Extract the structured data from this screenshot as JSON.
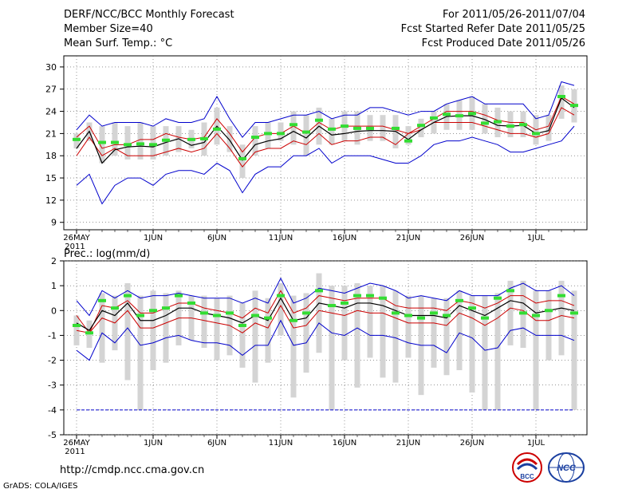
{
  "header": {
    "line1_left": "DERF/NCC/BCC Monthly Forecast",
    "line2_left": "Member Size=40",
    "line3_left": "Mean Surf. Temp.: °C",
    "line1_right": "For 2011/05/26-2011/07/04",
    "line2_right": "Fcst Started Refer Date 2011/05/25",
    "line3_right": "Fcst Produced Date 2011/05/26"
  },
  "footer": {
    "url": "http://cmdp.ncc.cma.gov.cn",
    "credit": "GrADS: COLA/IGES"
  },
  "logos": {
    "left": "BCC",
    "right": "NCC"
  },
  "colors": {
    "envelope": "#0000cc",
    "band": "#cc0000",
    "mean": "#000000",
    "obs": "#33dd33",
    "box": "#d4d4d4",
    "grid": "#555555"
  },
  "chart_data": [
    {
      "type": "line",
      "title": "Mean Surf. Temp.: °C",
      "xlabel": "",
      "ylabel": "",
      "ylim": [
        8,
        31.5
      ],
      "yticks": [
        9,
        12,
        15,
        18,
        21,
        24,
        27,
        30
      ],
      "xticks": [
        {
          "day": 0,
          "label": "26MAY",
          "sub": "2011"
        },
        {
          "day": 6,
          "label": "1JUN"
        },
        {
          "day": 11,
          "label": "6JUN"
        },
        {
          "day": 16,
          "label": "11JUN"
        },
        {
          "day": 21,
          "label": "16JUN"
        },
        {
          "day": 26,
          "label": "21JUN"
        },
        {
          "day": 31,
          "label": "26JUN"
        },
        {
          "day": 36,
          "label": "1JUL"
        }
      ],
      "days": 40,
      "series": [
        {
          "name": "max",
          "values": [
            14,
            15.5,
            11.5,
            14,
            15,
            15,
            14,
            15.5,
            16,
            16,
            15.5,
            17,
            16,
            13,
            15.5,
            16.5,
            16.5,
            18,
            18,
            19,
            17,
            18,
            18,
            18,
            17.5,
            17,
            17,
            18,
            19.5,
            20,
            20,
            20.5,
            20,
            19.5,
            18.5,
            18.5,
            19,
            19.5,
            20,
            22
          ]
        },
        {
          "name": "upper_band",
          "values": [
            18,
            20.5,
            18,
            19,
            18,
            18,
            18,
            18.5,
            19,
            18.5,
            19,
            21,
            19,
            16.5,
            18.5,
            19,
            19,
            20,
            19.5,
            21,
            19.5,
            20,
            20,
            20.5,
            20.5,
            19.5,
            21,
            21.5,
            22.5,
            22.5,
            22.5,
            22.5,
            22,
            21.5,
            21,
            21,
            20.5,
            21,
            24.5,
            23.5
          ]
        },
        {
          "name": "mean",
          "values": [
            19,
            21.3,
            17,
            18.8,
            19.2,
            19.3,
            19.2,
            19.8,
            20.3,
            19.4,
            19.8,
            22,
            20.1,
            17.4,
            19.5,
            20,
            20.3,
            21.3,
            20.4,
            22,
            20.8,
            21,
            21.3,
            21.4,
            21.4,
            21.3,
            20.2,
            21.5,
            22.5,
            23.3,
            23.4,
            23.4,
            22.9,
            22.1,
            22,
            22.1,
            21,
            21.4,
            25.8,
            24.5
          ]
        },
        {
          "name": "lower_band",
          "values": [
            20.5,
            22,
            19,
            19.5,
            19.5,
            20.2,
            20.2,
            21,
            20.5,
            20.2,
            20.5,
            23,
            21,
            18.5,
            20.5,
            21,
            21,
            22,
            21,
            22.5,
            21.5,
            22,
            22,
            22,
            22,
            21.5,
            21,
            22,
            23,
            24,
            24,
            24,
            23.5,
            22.8,
            22.5,
            22.5,
            21.5,
            22,
            26,
            25
          ]
        },
        {
          "name": "min",
          "values": [
            21.5,
            23.5,
            22,
            22.5,
            22.5,
            22.5,
            22,
            23,
            22.5,
            22.5,
            23,
            26,
            23,
            20.5,
            22.5,
            22.5,
            23,
            23.5,
            23.5,
            24,
            23,
            23.5,
            23.5,
            24.5,
            24.5,
            24,
            23.5,
            24,
            24,
            25,
            25.5,
            26,
            25,
            25,
            25,
            25,
            23,
            23.5,
            28,
            27.5
          ]
        },
        {
          "name": "observed",
          "values": [
            20.2,
            null,
            19.8,
            19.8,
            19.5,
            19.6,
            19.5,
            20.1,
            null,
            20.2,
            20.3,
            21.6,
            null,
            17.6,
            20.5,
            21,
            21,
            22.2,
            21.2,
            22.8,
            21.6,
            22,
            21.7,
            21.7,
            null,
            21.7,
            20,
            22.1,
            23.1,
            23.6,
            23.4,
            23.7,
            22.4,
            22.6,
            22,
            22.2,
            21,
            null,
            26,
            24.8
          ]
        },
        {
          "name": "box_low",
          "values": [
            19,
            20,
            17,
            18,
            17.5,
            17.5,
            17.5,
            18,
            18.5,
            19,
            18,
            19.5,
            18.5,
            15,
            18,
            19,
            20,
            19.5,
            18,
            19.5,
            19.5,
            20,
            19.5,
            20,
            20,
            19,
            19.5,
            20.5,
            21,
            21.5,
            21.5,
            21.5,
            21,
            20.5,
            20.5,
            20.5,
            19.5,
            20,
            23,
            22.5
          ]
        },
        {
          "name": "box_high",
          "values": [
            21,
            22.5,
            22,
            22.5,
            22,
            22.5,
            22,
            22,
            22,
            21.5,
            22.5,
            24.5,
            22,
            19.5,
            22,
            22.5,
            22.5,
            24,
            23.5,
            24.5,
            23,
            24,
            24,
            23.5,
            23.5,
            23.5,
            22,
            23,
            24,
            25,
            25.5,
            26,
            25,
            24.5,
            24,
            24,
            23.5,
            23.5,
            27.5,
            27
          ]
        }
      ]
    },
    {
      "type": "line",
      "title": "Prec.: log(mm/d)",
      "xlabel": "",
      "ylabel": "",
      "ylim": [
        -5,
        2
      ],
      "yticks": [
        -5,
        -4,
        -3,
        -2,
        -1,
        0,
        1,
        2
      ],
      "xticks": [
        {
          "day": 0,
          "label": "26MAY",
          "sub": "2011"
        },
        {
          "day": 6,
          "label": "1JUN"
        },
        {
          "day": 11,
          "label": "6JUN"
        },
        {
          "day": 16,
          "label": "11JUN"
        },
        {
          "day": 21,
          "label": "16JUN"
        },
        {
          "day": 26,
          "label": "21JUN"
        },
        {
          "day": 31,
          "label": "26JUN"
        },
        {
          "day": 36,
          "label": "1JUL"
        }
      ],
      "days": 40,
      "series": [
        {
          "name": "max",
          "values": [
            0.4,
            -0.2,
            0.8,
            0.5,
            0.8,
            0.5,
            0.6,
            0.6,
            0.7,
            0.6,
            0.5,
            0.5,
            0.5,
            0.3,
            0.5,
            0.3,
            1.3,
            0.3,
            0.5,
            0.9,
            0.8,
            0.7,
            0.9,
            1.1,
            1.0,
            0.8,
            0.5,
            0.6,
            0.5,
            0.4,
            0.8,
            0.6,
            0.6,
            0.6,
            0.9,
            1.1,
            0.8,
            0.8,
            1.0,
            0.6
          ]
        },
        {
          "name": "upper_band",
          "values": [
            -0.2,
            -0.9,
            0.2,
            0.1,
            0.4,
            -0.1,
            -0.1,
            0.1,
            0.3,
            0.3,
            0.1,
            0.0,
            -0.1,
            -0.3,
            0.1,
            -0.1,
            0.8,
            -0.1,
            0.1,
            0.6,
            0.5,
            0.4,
            0.5,
            0.5,
            0.5,
            0.2,
            0.1,
            0.1,
            0.1,
            0.0,
            0.4,
            0.3,
            0.1,
            0.3,
            0.6,
            0.6,
            0.3,
            0.4,
            0.4,
            0.2
          ]
        },
        {
          "name": "mean",
          "values": [
            -0.5,
            -0.8,
            0.0,
            -0.2,
            0.3,
            -0.4,
            -0.4,
            -0.2,
            0.1,
            0.1,
            -0.1,
            -0.2,
            -0.3,
            -0.5,
            -0.2,
            -0.4,
            0.5,
            -0.4,
            -0.3,
            0.3,
            0.2,
            0.1,
            0.3,
            0.3,
            0.2,
            0.0,
            -0.2,
            -0.2,
            -0.2,
            -0.3,
            0.2,
            0.0,
            -0.2,
            0.1,
            0.4,
            0.3,
            -0.1,
            0.0,
            0.1,
            0.0
          ]
        },
        {
          "name": "lower_band",
          "values": [
            -0.8,
            -0.9,
            -0.3,
            -0.5,
            0.0,
            -0.7,
            -0.7,
            -0.5,
            -0.3,
            -0.3,
            -0.4,
            -0.5,
            -0.6,
            -0.9,
            -0.5,
            -0.7,
            0.2,
            -0.7,
            -0.6,
            0.0,
            -0.1,
            -0.2,
            0.0,
            -0.1,
            -0.1,
            -0.3,
            -0.5,
            -0.5,
            -0.5,
            -0.6,
            -0.1,
            -0.3,
            -0.6,
            -0.3,
            0.1,
            0.0,
            -0.4,
            -0.4,
            -0.2,
            -0.3
          ]
        },
        {
          "name": "min",
          "values": [
            -1.6,
            -2.0,
            -0.9,
            -1.3,
            -0.7,
            -1.4,
            -1.3,
            -1.1,
            -1.0,
            -1.2,
            -1.3,
            -1.3,
            -1.4,
            -1.8,
            -1.4,
            -1.4,
            -0.4,
            -1.4,
            -1.3,
            -0.5,
            -0.9,
            -1.0,
            -0.7,
            -1.0,
            -1.0,
            -1.1,
            -1.3,
            -1.4,
            -1.4,
            -1.7,
            -0.9,
            -1.1,
            -1.6,
            -1.5,
            -0.8,
            -0.7,
            -1.0,
            -1.0,
            -1.0,
            -1.2
          ]
        },
        {
          "name": "floor",
          "values": [
            -4,
            -4,
            -4,
            -4,
            -4,
            -4,
            -4,
            -4,
            -4,
            -4,
            -4,
            -4,
            -4,
            -4,
            -4,
            -4,
            -4,
            -4,
            -4,
            -4,
            -4,
            -4,
            -4,
            -4,
            -4,
            -4,
            -4,
            -4,
            -4,
            -4,
            -4,
            -4,
            -4,
            -4,
            -4,
            -4,
            -4,
            -4,
            -4,
            -4
          ]
        },
        {
          "name": "observed",
          "values": [
            -0.6,
            -0.9,
            0.4,
            0.1,
            0.6,
            -0.2,
            0.0,
            0.1,
            0.6,
            0.3,
            -0.1,
            -0.2,
            -0.1,
            -0.6,
            -0.2,
            -0.3,
            0.6,
            -0.4,
            -0.1,
            0.8,
            0.2,
            0.3,
            0.6,
            0.6,
            0.5,
            -0.1,
            -0.2,
            -0.3,
            -0.1,
            -0.2,
            0.4,
            0.1,
            -0.3,
            0.5,
            0.8,
            -0.1,
            -0.2,
            0.0,
            0.6,
            -0.1
          ]
        },
        {
          "name": "box_low",
          "values": [
            -1.4,
            -1.5,
            -2.1,
            -1.6,
            -2.8,
            -4.0,
            -2.4,
            -2.1,
            -1.4,
            -1.2,
            -1.5,
            -2.0,
            -1.8,
            -2.3,
            -2.9,
            -2.1,
            -1.0,
            -3.5,
            -2.5,
            -1.7,
            -4.0,
            -2.0,
            -3.1,
            -1.9,
            -2.7,
            -2.9,
            -1.9,
            -3.4,
            -2.3,
            -2.6,
            -2.4,
            -3.3,
            -4.0,
            -4.0,
            -1.4,
            -1.5,
            -4.0,
            -2.0,
            -1.8,
            -4.0
          ]
        },
        {
          "name": "box_high",
          "values": [
            -0.2,
            -0.4,
            0.7,
            0.6,
            1.1,
            0.6,
            0.8,
            0.7,
            0.8,
            0.6,
            0.6,
            0.5,
            0.6,
            0.3,
            0.8,
            0.5,
            1.1,
            0.6,
            0.7,
            1.5,
            1.0,
            1.0,
            1.1,
            1.0,
            1.0,
            0.8,
            0.6,
            0.6,
            0.5,
            0.5,
            0.8,
            0.6,
            0.6,
            0.7,
            1.2,
            1.2,
            0.8,
            0.8,
            1.2,
            0.8
          ]
        }
      ]
    }
  ]
}
